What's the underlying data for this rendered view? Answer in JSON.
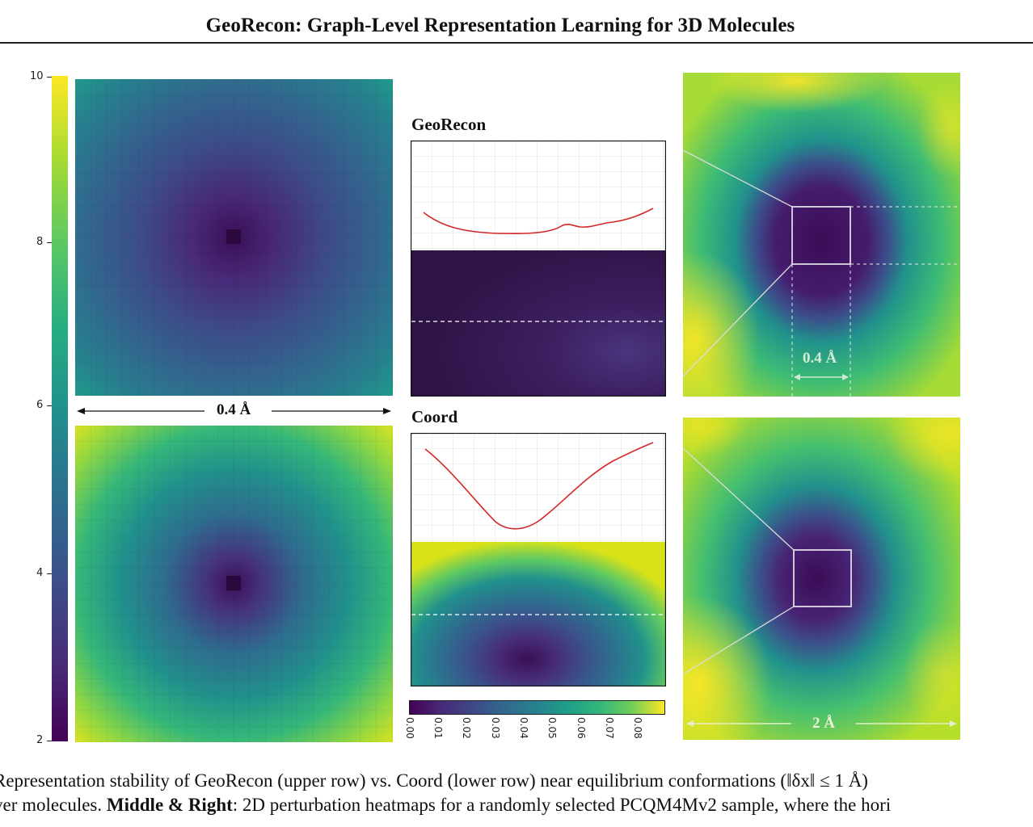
{
  "header": {
    "title": "GeoRecon: Graph-Level Representation Learning for 3D Molecules"
  },
  "left_colorbar": {
    "ticks": [
      "10",
      "8",
      "6",
      "4",
      "2"
    ]
  },
  "left_panels": {
    "scale_label": "0.4 Å"
  },
  "middle_panels": {
    "top_title": "GeoRecon",
    "bottom_title": "Coord",
    "colorbar_ticks": [
      "0.00",
      "0.01",
      "0.02",
      "0.03",
      "0.04",
      "0.05",
      "0.06",
      "0.07",
      "0.08"
    ]
  },
  "right_panels": {
    "top_scale_label": "0.4 Å",
    "bottom_scale_label": "2 Å"
  },
  "colors": {
    "viridis_dark": "#440154",
    "viridis_mid": "#21918c",
    "viridis_light": "#fde725",
    "curve_red": "#d62728"
  },
  "caption": {
    "line1": "Representation stability of GeoRecon (upper row) vs. Coord (lower row) near equilibrium conformations (‖δx‖ ≤ 1 Å)",
    "line2_bold": "Middle & Right",
    "line2_pre": "ver molecules. ",
    "line2_rest": ": 2D perturbation heatmaps for a randomly selected PCQM4Mv2 sample, where the hori"
  }
}
